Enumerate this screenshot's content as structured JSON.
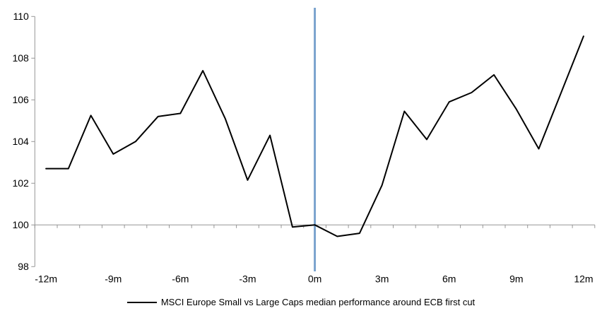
{
  "chart_data": {
    "type": "line",
    "title": "",
    "x_axis": {
      "categories": [
        -12,
        -11,
        -10,
        -9,
        -8,
        -7,
        -6,
        -5,
        -4,
        -3,
        -2,
        -1,
        0,
        1,
        2,
        3,
        4,
        5,
        6,
        7,
        8,
        9,
        10,
        11,
        12
      ],
      "tick_values": [
        -12,
        -9,
        -6,
        -3,
        0,
        3,
        6,
        9,
        12
      ],
      "tick_labels": [
        "-12m",
        "-9m",
        "-6m",
        "-3m",
        "0m",
        "3m",
        "6m",
        "9m",
        "12m"
      ],
      "axis_crosses_at": 100
    },
    "y_axis": {
      "min": 98,
      "max": 110,
      "ticks": [
        98,
        100,
        102,
        104,
        106,
        108,
        110
      ],
      "tick_labels": [
        "98",
        "100",
        "102",
        "104",
        "106",
        "108",
        "110"
      ]
    },
    "series": [
      {
        "name": "MSCI Europe Small vs Large Caps median performance around ECB first cut",
        "color": "#000000",
        "values": [
          102.7,
          102.7,
          105.25,
          103.4,
          104.0,
          105.2,
          105.35,
          107.4,
          105.1,
          102.15,
          104.3,
          99.9,
          100.0,
          99.45,
          99.6,
          101.9,
          105.45,
          104.1,
          105.9,
          106.35,
          107.2,
          105.55,
          103.65,
          106.35,
          109.05
        ]
      }
    ],
    "event_line": {
      "x": 0,
      "color": "#7BA3CE"
    },
    "legend": {
      "position": "bottom-center",
      "label": "MSCI Europe Small vs Large Caps median performance around ECB first cut"
    },
    "grid": "off",
    "colors": {
      "axis": "#969696",
      "text": "#000000",
      "background": "#FFFFFF"
    }
  }
}
